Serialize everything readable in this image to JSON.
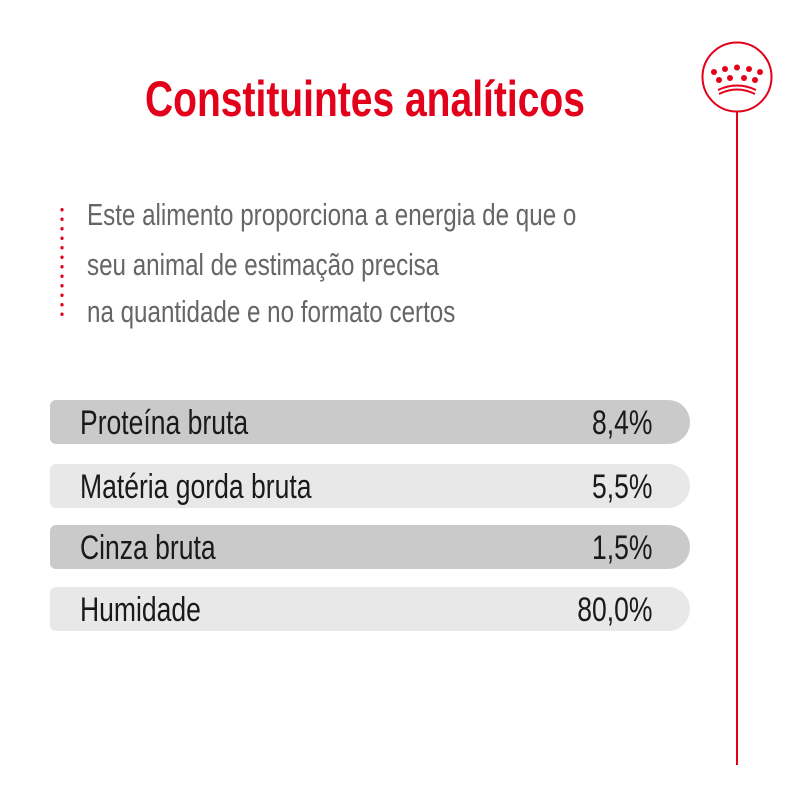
{
  "title": "Constituintes analíticos",
  "description": [
    "Este alimento proporciona a energia de que o",
    "seu animal de estimação precisa",
    "na quantidade e no formato certos"
  ],
  "rows": [
    {
      "label": "Proteína bruta",
      "value": "8,4%"
    },
    {
      "label": "Matéria gorda bruta",
      "value": "5,5%"
    },
    {
      "label": "Cinza bruta",
      "value": "1,5%"
    },
    {
      "label": "Humidade",
      "value": "80,0%"
    }
  ],
  "colors": {
    "accent": "#e2001a",
    "row_dark": "#cacaca",
    "row_light": "#e8e8e8",
    "text": "#666666"
  },
  "logo": {
    "icon": "crown-icon",
    "text": "Royal Canin"
  }
}
